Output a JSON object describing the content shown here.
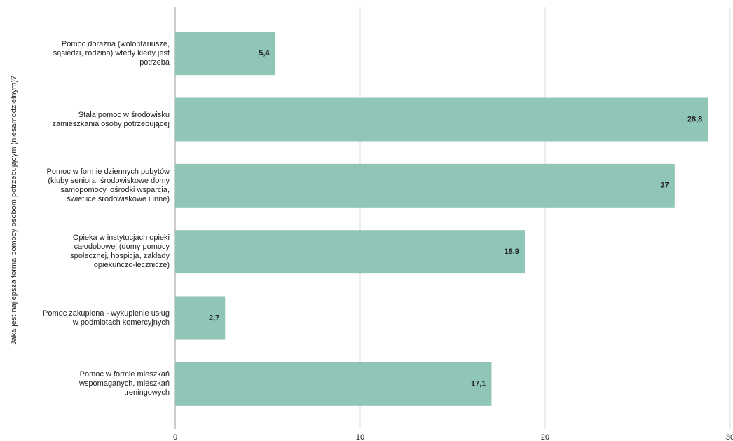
{
  "chart_data": {
    "type": "bar",
    "y_label": "Jaka jest najlepsza forma pomocy osobom potrzebującym (niesamodzielnym)?",
    "categories": [
      "Pomoc doraźna (wolontariusze, sąsiedzi, rodzina) wtedy kiedy jest potrzeba",
      "Stała pomoc w środowisku zamieszkania osoby potrzebującej",
      "Pomoc w formie dziennych pobytów (kluby seniora, środowiskowe domy samopomocy, ośrodki wsparcia, świetlice środowiskowe i inne)",
      "Opieka w instytucjach opieki całodobowej (domy pomocy społecznej, hospicja, zakłady opiekuńczo-lecznicze)",
      "Pomoc zakupiona - wykupienie usług w podmiotach komercyjnych",
      "Pomoc w formie mieszkań wspomaganych, mieszkań treningowych"
    ],
    "values": [
      5.4,
      28.8,
      27,
      18.9,
      2.7,
      17.1
    ],
    "value_labels": [
      "5,4",
      "28,8",
      "27",
      "18,9",
      "2,7",
      "17,1"
    ],
    "color": "#8fc6b7",
    "xlim": [
      0,
      30
    ],
    "xticks": [
      0,
      10,
      20,
      30
    ],
    "grid": true
  }
}
